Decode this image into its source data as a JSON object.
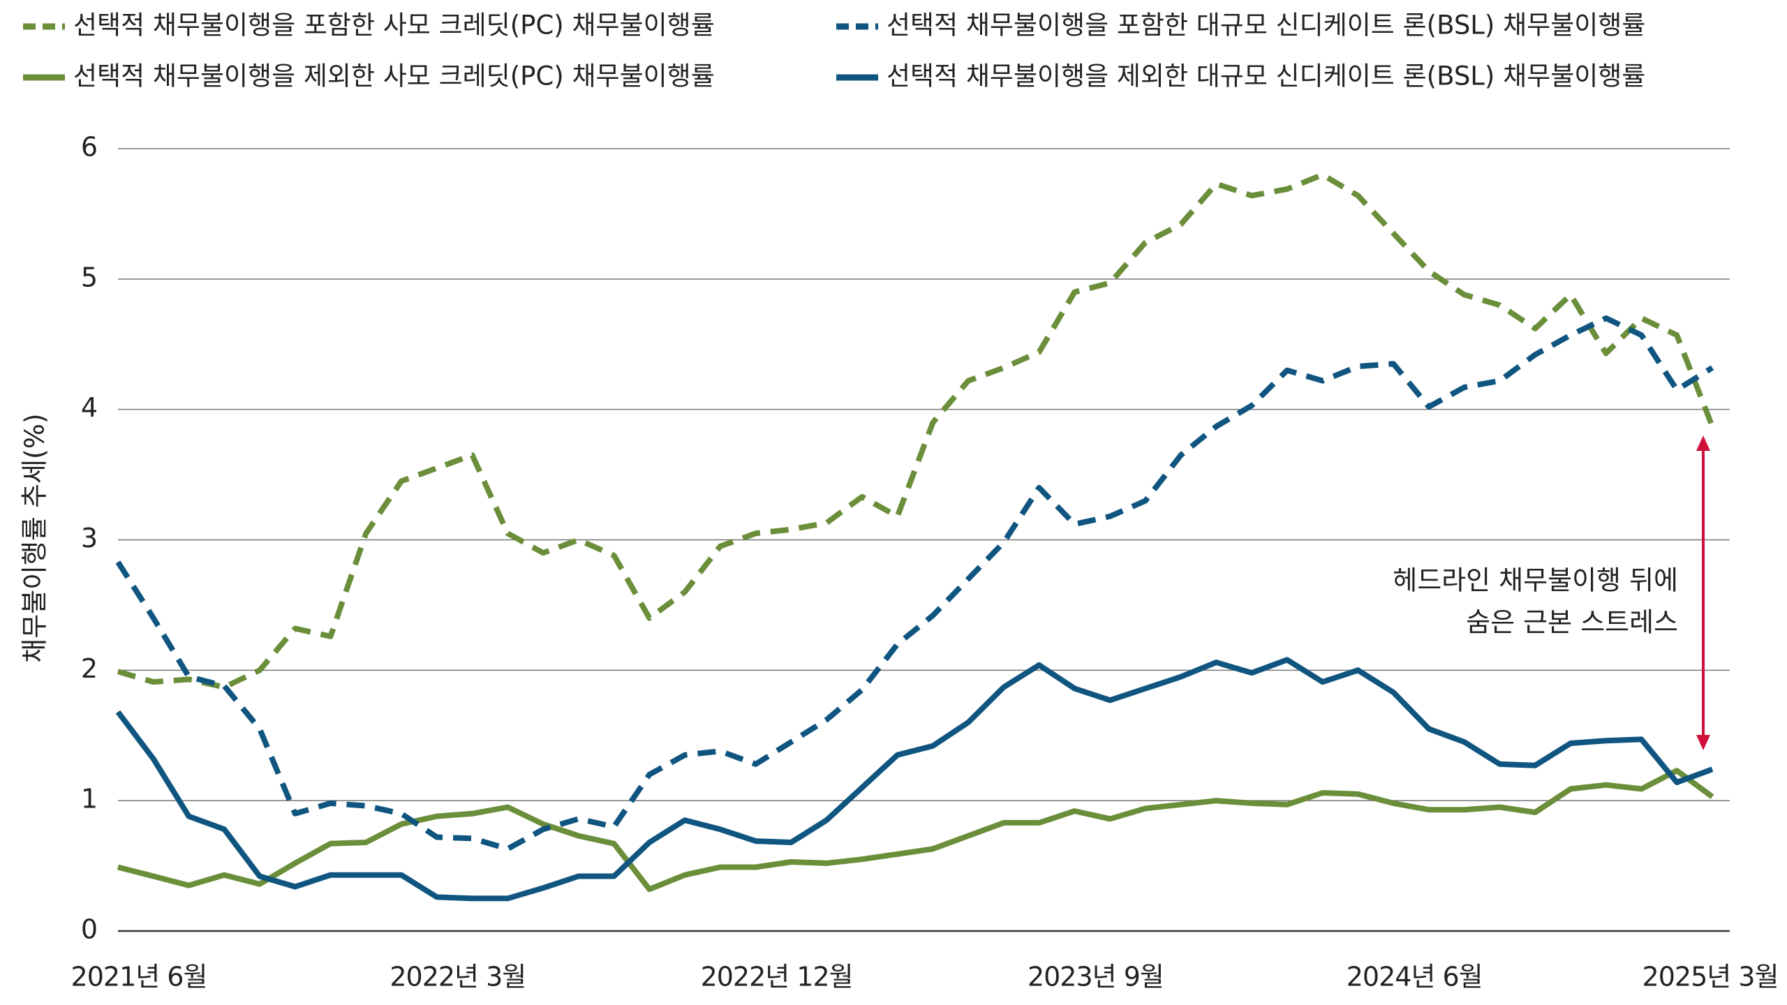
{
  "chart_data": {
    "type": "line",
    "y_label": "채무불이행률 추세(%)",
    "categories": [
      "2021년 6월",
      null,
      null,
      null,
      null,
      null,
      null,
      null,
      null,
      "2022년 3월",
      null,
      null,
      null,
      null,
      null,
      null,
      null,
      null,
      "2022년 12월",
      null,
      null,
      null,
      null,
      null,
      null,
      null,
      null,
      "2023년 9월",
      null,
      null,
      null,
      null,
      null,
      null,
      null,
      null,
      "2024년 6월",
      null,
      null,
      null,
      null,
      null,
      null,
      null,
      null,
      "2025년 3월"
    ],
    "series": [
      {
        "name": "선택적 채무불이행을 포함한 사모 크레딧(PC) 채무불이행률",
        "color": "#6b8e3a",
        "dashed": true,
        "values": [
          1.99,
          1.91,
          1.93,
          1.87,
          2.0,
          2.32,
          2.26,
          3.05,
          3.45,
          3.55,
          3.65,
          3.05,
          2.9,
          3.0,
          2.88,
          2.4,
          2.6,
          2.95,
          3.05,
          3.08,
          3.13,
          3.33,
          3.18,
          3.9,
          4.22,
          4.32,
          4.44,
          4.9,
          4.97,
          5.28,
          5.42,
          5.73,
          5.64,
          5.69,
          5.8,
          5.64,
          5.35,
          5.06,
          4.88,
          4.8,
          4.62,
          4.88,
          4.43,
          4.7,
          4.57,
          3.87
        ]
      },
      {
        "name": "선택적 채무불이행을 제외한 사모 크레딧(PC) 채무불이행률",
        "color": "#6b8e3a",
        "dashed": false,
        "values": [
          0.49,
          0.42,
          0.35,
          0.43,
          0.36,
          0.52,
          0.67,
          0.68,
          0.82,
          0.88,
          0.9,
          0.95,
          0.82,
          0.73,
          0.67,
          0.32,
          0.43,
          0.49,
          0.49,
          0.53,
          0.52,
          0.55,
          0.59,
          0.63,
          0.73,
          0.83,
          0.83,
          0.92,
          0.86,
          0.94,
          0.97,
          1.0,
          0.98,
          0.97,
          1.06,
          1.05,
          0.98,
          0.93,
          0.93,
          0.95,
          0.91,
          1.09,
          1.12,
          1.09,
          1.23,
          1.03
        ]
      },
      {
        "name": "선택적 채무불이행을 포함한 대규모 신디케이트 론(BSL) 채무불이행률",
        "color": "#0f5580",
        "dashed": true,
        "values": [
          2.83,
          2.4,
          1.95,
          1.88,
          1.55,
          0.9,
          0.98,
          0.96,
          0.9,
          0.72,
          0.71,
          0.63,
          0.78,
          0.86,
          0.8,
          1.2,
          1.35,
          1.38,
          1.28,
          1.45,
          1.62,
          1.85,
          2.2,
          2.42,
          2.7,
          2.98,
          3.4,
          3.12,
          3.18,
          3.3,
          3.65,
          3.87,
          4.03,
          4.3,
          4.22,
          4.33,
          4.35,
          4.02,
          4.17,
          4.22,
          4.42,
          4.57,
          4.7,
          4.57,
          4.15,
          4.32
        ]
      },
      {
        "name": "선택적 채무불이행을 제외한 대규모 신디케이트 론(BSL) 채무불이행률",
        "color": "#0f5580",
        "dashed": false,
        "values": [
          1.68,
          1.32,
          0.88,
          0.78,
          0.42,
          0.34,
          0.43,
          0.43,
          0.43,
          0.26,
          0.25,
          0.25,
          0.33,
          0.42,
          0.42,
          0.68,
          0.85,
          0.78,
          0.69,
          0.68,
          0.85,
          1.1,
          1.35,
          1.42,
          1.6,
          1.87,
          2.04,
          1.86,
          1.77,
          1.86,
          1.95,
          2.06,
          1.98,
          2.08,
          1.91,
          2.0,
          1.83,
          1.55,
          1.45,
          1.28,
          1.27,
          1.44,
          1.46,
          1.47,
          1.14,
          1.24
        ]
      }
    ],
    "ylim": [
      0,
      6
    ],
    "yticks": [
      0,
      1,
      2,
      3,
      4,
      5,
      6
    ],
    "grid": true,
    "annotation": {
      "lines": [
        "헤드라인 채무불이행 뒤에",
        "숨은 근본 스트레스"
      ],
      "color": "#d0103a"
    }
  }
}
